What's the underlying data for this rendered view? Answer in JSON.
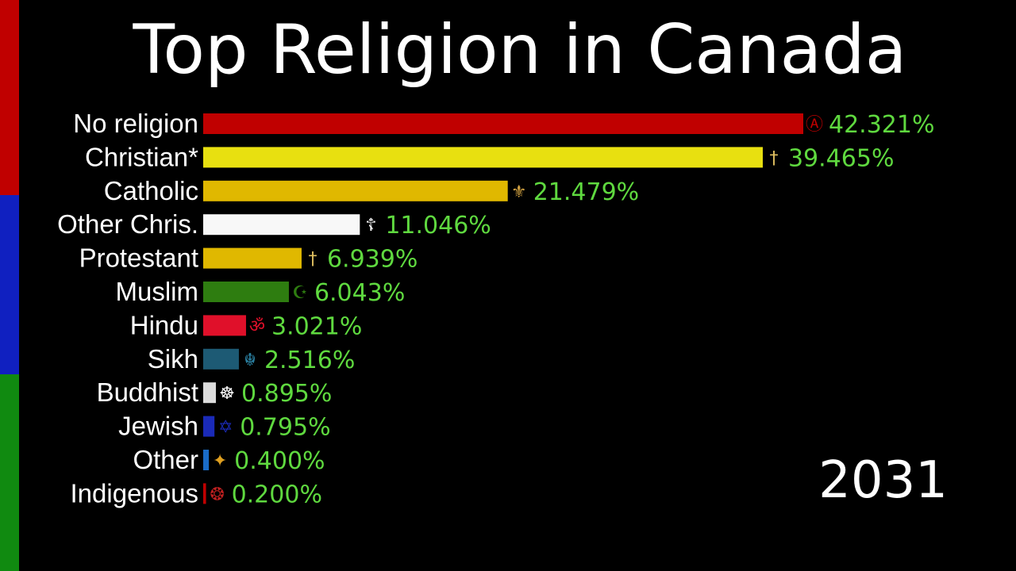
{
  "colors": {
    "background": "#000000",
    "stripe_top": "#c00000",
    "stripe_middle": "#1020c0",
    "stripe_bottom": "#108a10",
    "value_text": "#5fd93f",
    "label_text": "#ffffff"
  },
  "year": "2031",
  "chart_data": {
    "type": "bar",
    "orientation": "horizontal",
    "title": "Top Religion in Canada",
    "xlim": [
      0,
      42.321
    ],
    "categories": [
      "No religion",
      "Christian*",
      "Catholic",
      "Other Chris.",
      "Protestant",
      "Muslim",
      "Hindu",
      "Sikh",
      "Buddhist",
      "Jewish",
      "Other",
      "Indigenous"
    ],
    "values": [
      42.321,
      39.465,
      21.479,
      11.046,
      6.939,
      6.043,
      3.021,
      2.516,
      0.895,
      0.795,
      0.4,
      0.2
    ],
    "value_labels": [
      "42.321%",
      "39.465%",
      "21.479%",
      "11.046%",
      "6.939%",
      "6.043%",
      "3.021%",
      "2.516%",
      "0.895%",
      "0.795%",
      "0.400%",
      "0.200%"
    ],
    "bar_colors": [
      "#c00000",
      "#e8e010",
      "#e0b800",
      "#f8f8f8",
      "#e0b800",
      "#2e7d10",
      "#e0102a",
      "#1d5a74",
      "#dcdcdc",
      "#1a2ab8",
      "#1a6cc8",
      "#c00000"
    ],
    "icons": [
      "atheism-symbol-icon",
      "cross-icon",
      "papal-keys-icon",
      "orthodox-cross-icon",
      "cross-icon",
      "crescent-star-icon",
      "om-icon",
      "khanda-icon",
      "dharma-wheel-icon",
      "star-of-david-icon",
      "rainbow-emblem-icon",
      "indigenous-emblem-icon"
    ],
    "icon_glyphs": [
      "Ⓐ",
      "†",
      "⚜",
      "☦",
      "†",
      "☪",
      "ॐ",
      "☬",
      "☸",
      "✡",
      "✦",
      "❂"
    ],
    "icon_colors": [
      "#c00000",
      "#e0c060",
      "#d0a040",
      "#ffffff",
      "#e0c060",
      "#2e7d10",
      "#e0102a",
      "#2a7fa0",
      "#ffffff",
      "#1a2ab8",
      "#e0a020",
      "#c02020"
    ],
    "grid": false,
    "legend": "none"
  }
}
